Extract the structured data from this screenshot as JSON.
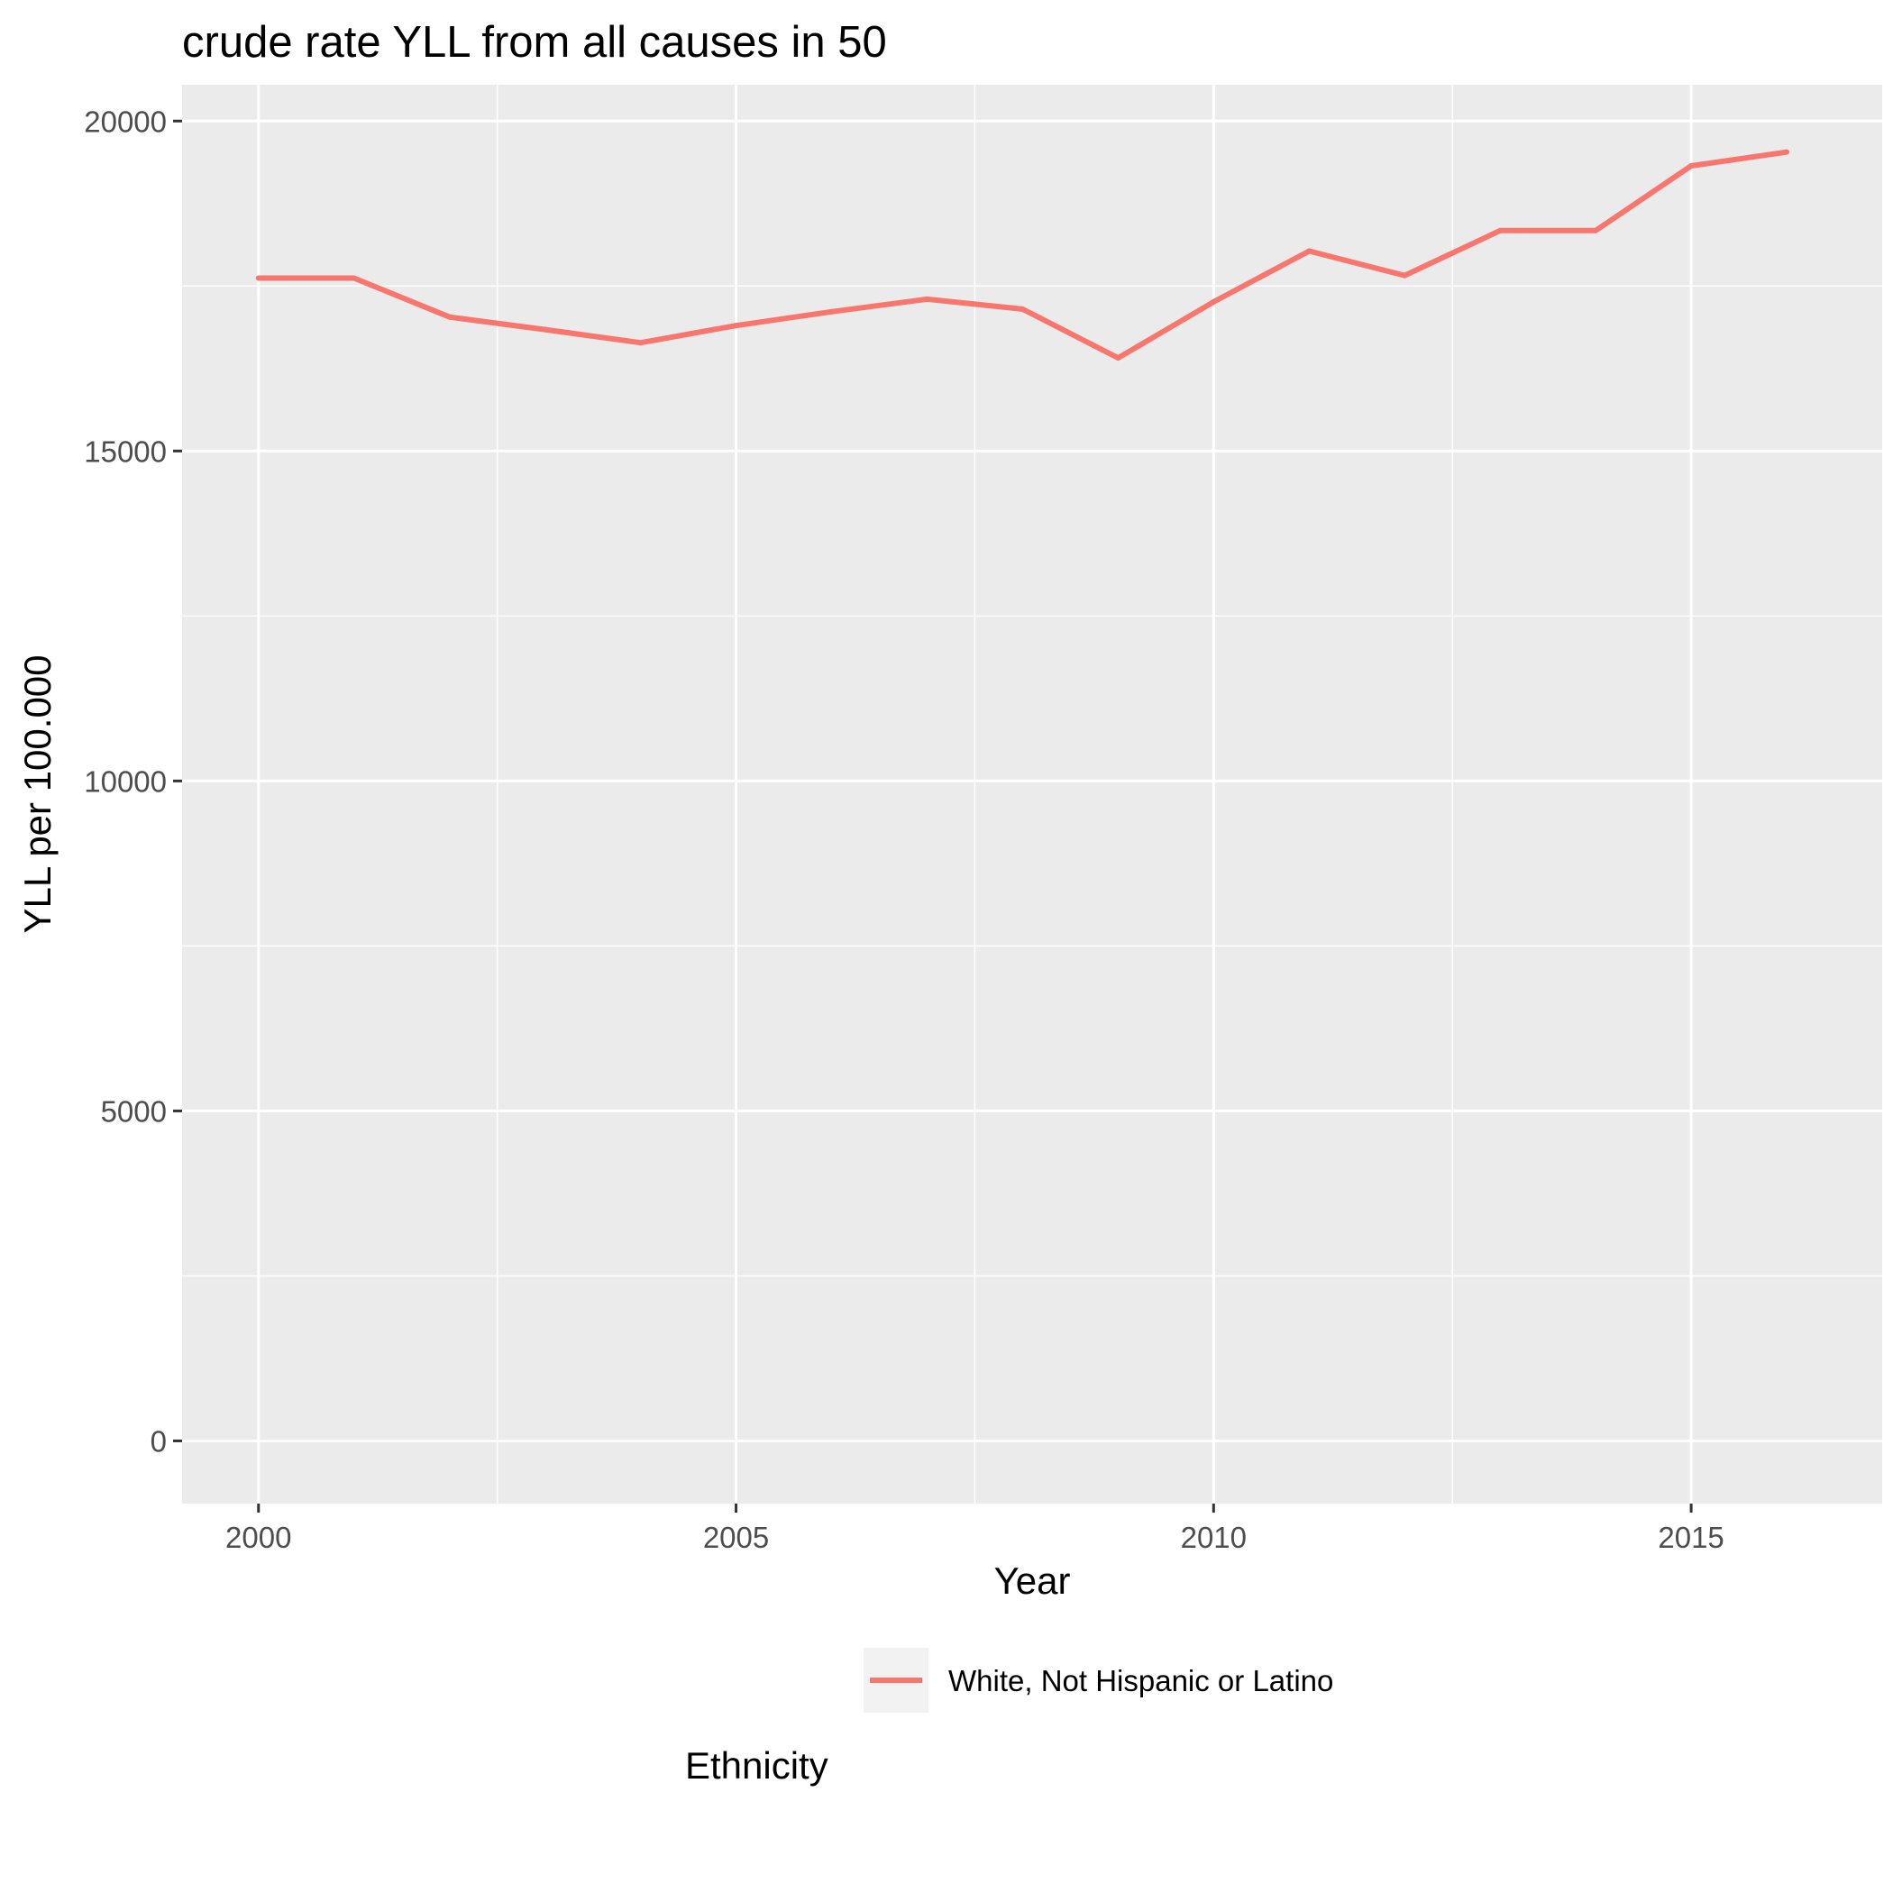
{
  "chart_data": {
    "type": "line",
    "title": "crude rate YLL from all causes in 50",
    "xlabel": "Year",
    "ylabel": "YLL per 100.000",
    "xlim": [
      1999.2,
      2017
    ],
    "ylim": [
      -950,
      20550
    ],
    "x_ticks": [
      2000,
      2005,
      2010,
      2015
    ],
    "x_tick_labels": [
      "2000",
      "2005",
      "2010",
      "2015"
    ],
    "x_minor_ticks": [
      2002.5,
      2007.5,
      2012.5
    ],
    "y_ticks": [
      0,
      5000,
      10000,
      15000,
      20000
    ],
    "y_tick_labels": [
      "0",
      "5000",
      "10000",
      "15000",
      "20000"
    ],
    "y_minor_ticks": [
      2500,
      7500,
      12500,
      17500
    ],
    "grid": true,
    "legend_position": "bottom",
    "legend_title": "Ethnicity",
    "series": [
      {
        "name": "White, Not Hispanic or Latino",
        "color": "#F8766D",
        "x": [
          2000,
          2001,
          2002,
          2003,
          2004,
          2005,
          2006,
          2007,
          2008,
          2009,
          2010,
          2011,
          2012,
          2013,
          2014,
          2015,
          2016
        ],
        "values": [
          17620,
          17620,
          17030,
          16840,
          16640,
          16900,
          17110,
          17300,
          17150,
          16410,
          17260,
          18030,
          17660,
          18340,
          18340,
          19320,
          19530
        ]
      }
    ]
  },
  "colors": {
    "panel_background": "#EBEBEB",
    "grid": "#FFFFFF",
    "legend_key_background": "#F2F2F2"
  }
}
